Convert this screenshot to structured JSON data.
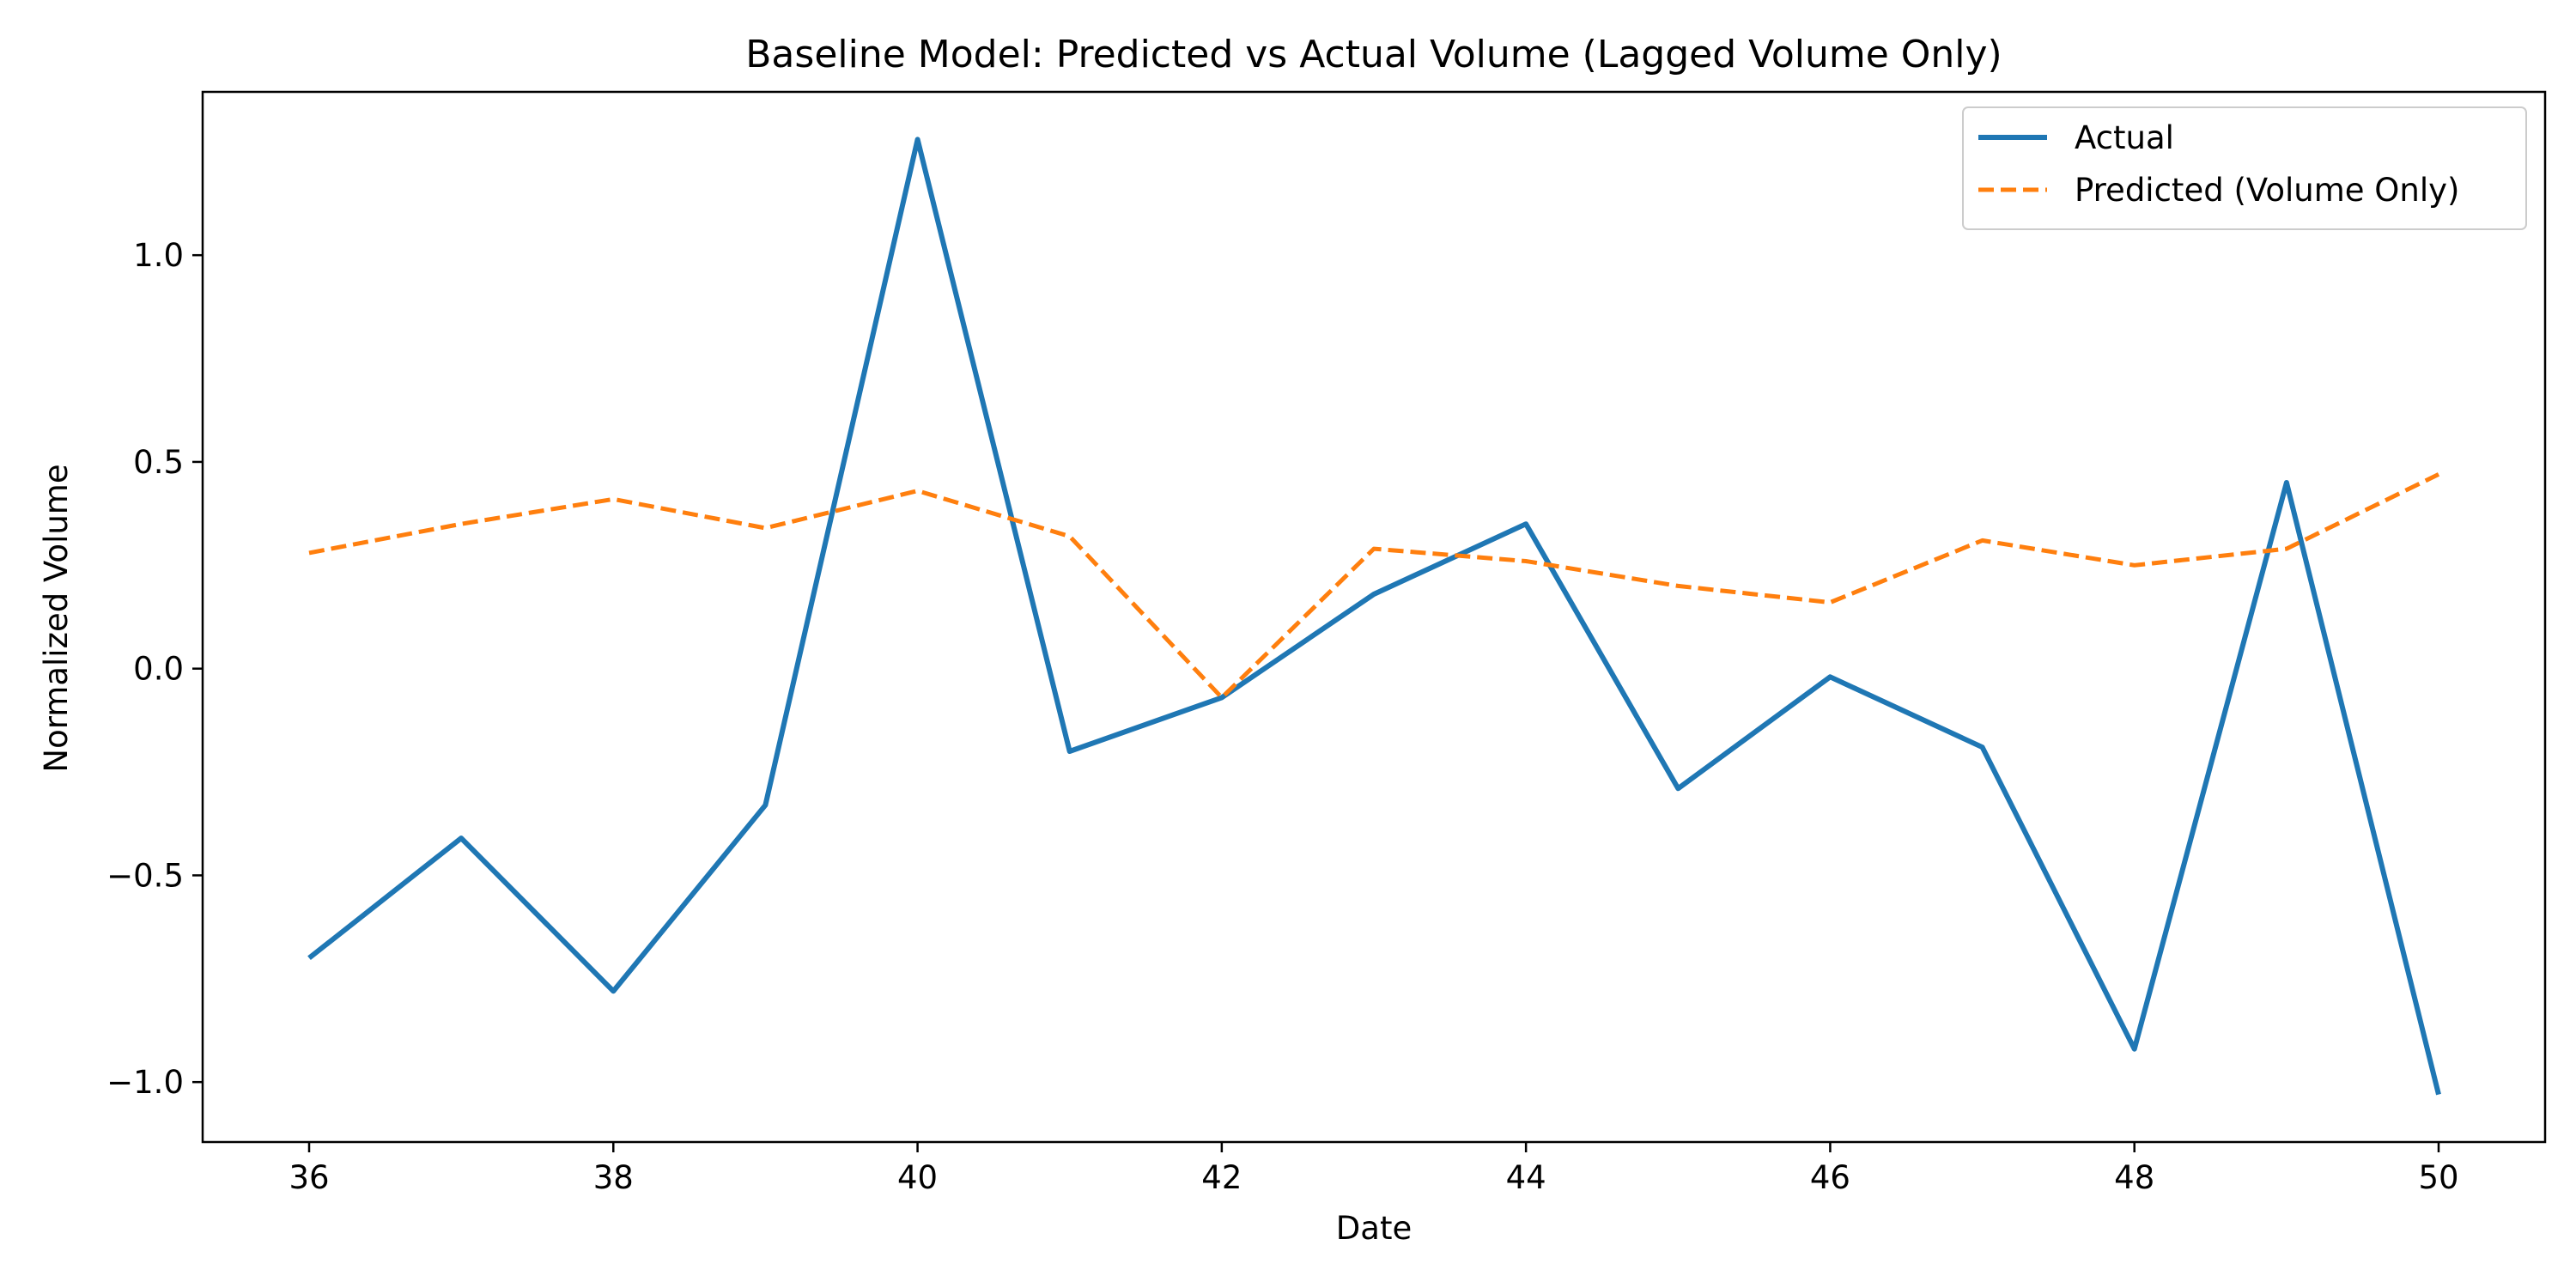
{
  "chart_data": {
    "type": "line",
    "title": "Baseline Model: Predicted vs Actual Volume (Lagged Volume Only)",
    "xlabel": "Date",
    "ylabel": "Normalized Volume",
    "xlim": [
      35.3,
      50.7
    ],
    "ylim": [
      -1.145,
      1.395
    ],
    "xticks": [
      36,
      38,
      40,
      42,
      44,
      46,
      48,
      50
    ],
    "xtick_labels": [
      "36",
      "38",
      "40",
      "42",
      "44",
      "46",
      "48",
      "50"
    ],
    "yticks": [
      -1.0,
      -0.5,
      0.0,
      0.5,
      1.0
    ],
    "ytick_labels": [
      "−1.0",
      "−0.5",
      "0.0",
      "0.5",
      "1.0"
    ],
    "grid": false,
    "legend_position": "top-right",
    "x": [
      36,
      37,
      38,
      39,
      40,
      41,
      42,
      43,
      44,
      45,
      46,
      47,
      48,
      49,
      50
    ],
    "series": [
      {
        "name": "Actual",
        "color": "#1f77b4",
        "style": "solid",
        "values": [
          -0.7,
          -0.41,
          -0.78,
          -0.33,
          1.28,
          -0.2,
          -0.07,
          0.18,
          0.35,
          -0.29,
          -0.02,
          -0.19,
          -0.92,
          0.45,
          -1.03
        ]
      },
      {
        "name": "Predicted (Volume Only)",
        "color": "#ff7f0e",
        "style": "dashed",
        "values": [
          0.28,
          0.35,
          0.41,
          0.34,
          0.43,
          0.32,
          -0.07,
          0.29,
          0.26,
          0.2,
          0.16,
          0.31,
          0.25,
          0.29,
          0.47
        ]
      }
    ]
  }
}
